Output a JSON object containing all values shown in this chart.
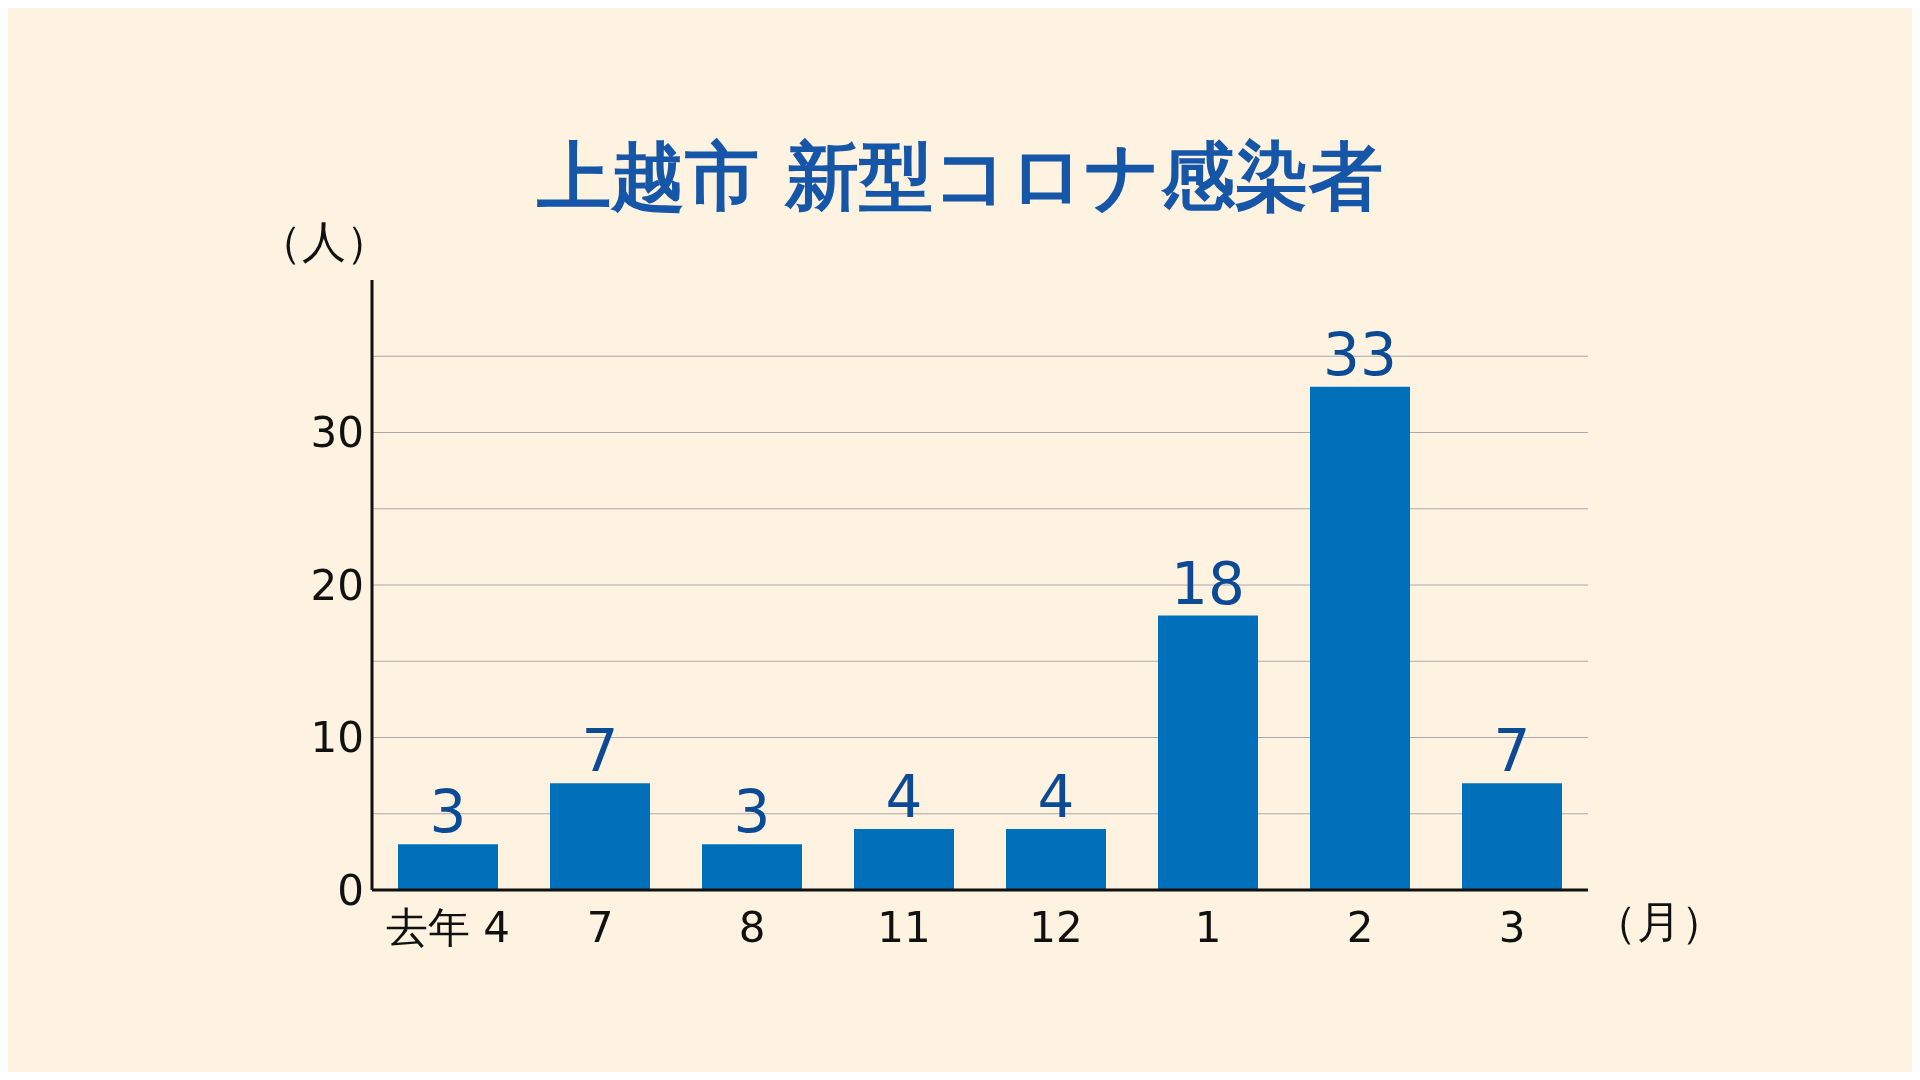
{
  "chart_data": {
    "type": "bar",
    "title": "上越市 新型コロナ感染者",
    "ylabel": "（人）",
    "xlabel": "（月）",
    "categories": [
      "去年 4",
      "7",
      "8",
      "11",
      "12",
      "1",
      "2",
      "3"
    ],
    "values": [
      3,
      7,
      3,
      4,
      4,
      18,
      33,
      7
    ],
    "color": "#0070bb",
    "ylim": [
      0,
      40
    ],
    "yticks": [
      0,
      {
        "value": 5,
        "label": null
      },
      10,
      {
        "value": 15,
        "label": null
      },
      20,
      {
        "value": 25,
        "label": null
      },
      30,
      {
        "value": 35,
        "label": null
      }
    ],
    "grid": "y",
    "data_labels": true
  }
}
